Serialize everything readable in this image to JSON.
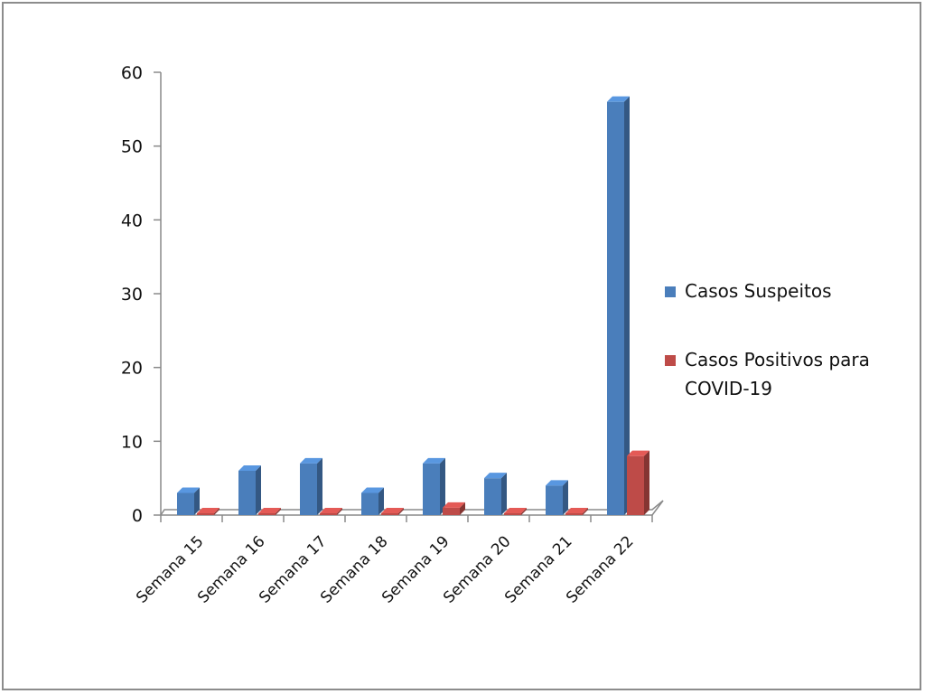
{
  "chart_data": {
    "type": "bar",
    "style": "3d-clustered-column",
    "categories": [
      "Semana 15",
      "Semana 16",
      "Semana 17",
      "Semana 18",
      "Semana 19",
      "Semana 20",
      "Semana 21",
      "Semana 22"
    ],
    "series": [
      {
        "name": "Casos Suspeitos",
        "color": "#4a7ebb",
        "values": [
          3,
          6,
          7,
          3,
          7,
          5,
          4,
          56
        ]
      },
      {
        "name": "Casos Positivos para COVID-19",
        "color": "#be4b48",
        "values": [
          0,
          0,
          0,
          0,
          1,
          0,
          0,
          8
        ]
      }
    ],
    "ylim": [
      0,
      60
    ],
    "yticks": [
      0,
      10,
      20,
      30,
      40,
      50,
      60
    ],
    "grid": false,
    "legend_position": "right"
  }
}
